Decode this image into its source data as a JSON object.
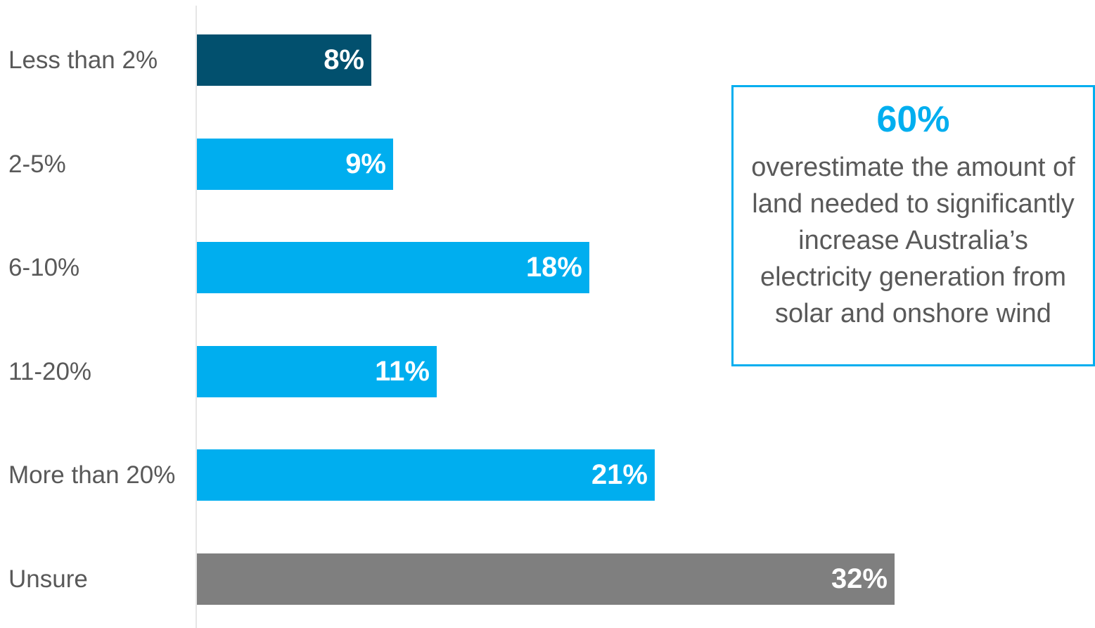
{
  "chart_data": {
    "type": "bar",
    "orientation": "horizontal",
    "categories": [
      "Less than 2%",
      "2-5%",
      "6-10%",
      "11-20%",
      "More than 20%",
      "Unsure"
    ],
    "values": [
      8,
      9,
      18,
      11,
      21,
      32
    ],
    "value_labels": [
      "8%",
      "9%",
      "18%",
      "11%",
      "21%",
      "32%"
    ],
    "bar_colors": [
      "#02506e",
      "#00aeef",
      "#00aeef",
      "#00aeef",
      "#00aeef",
      "#7f7f7f"
    ],
    "xlim": [
      0,
      36
    ],
    "title": "",
    "xlabel": "",
    "ylabel": "",
    "grid": false,
    "legend": "none"
  },
  "callout": {
    "stat": "60%",
    "text": "overestimate the amount of land needed to significantly increase Australia’s electricity generation from solar and onshore wind",
    "border_color": "#00aeef",
    "stat_color": "#00aeef"
  }
}
